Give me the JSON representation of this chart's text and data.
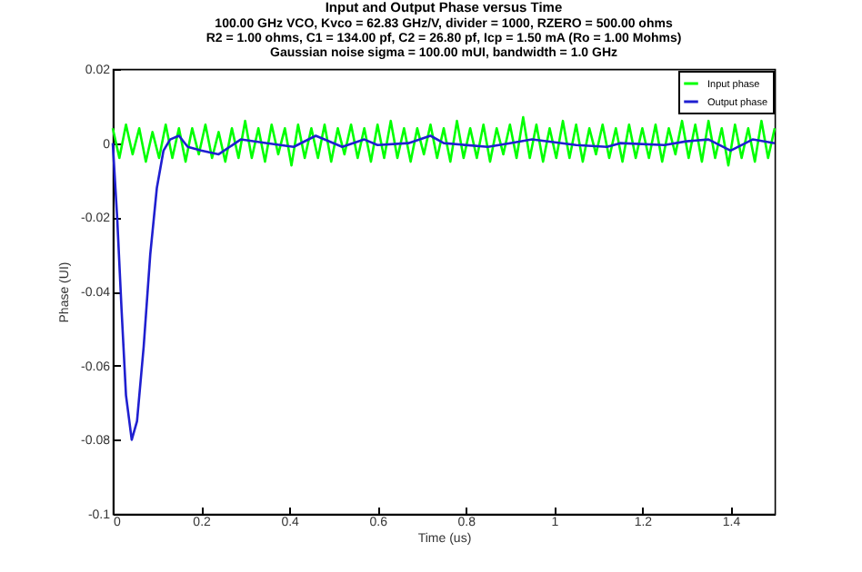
{
  "chart_data": {
    "type": "line",
    "title": "Input and Output Phase versus Time",
    "subtitle": "100.00 GHz VCO, Kvco = 62.83 GHz/V, divider = 1000, RZERO = 500.00 ohms\nR2 = 1.00 ohms, C1 = 134.00 pf, C2 = 26.80 pf, Icp = 1.50 mA (Ro = 1.00 Mohms)\nGaussian noise sigma = 100.00 mUI, bandwidth = 1.0 GHz",
    "xlabel": "Time (us)",
    "ylabel": "Phase (UI)",
    "xlim": [
      0,
      1.5
    ],
    "ylim": [
      -0.1,
      0.02
    ],
    "xticks": [
      0,
      0.2,
      0.4,
      0.6,
      0.8,
      1,
      1.2,
      1.4
    ],
    "yticks": [
      -0.1,
      -0.08,
      -0.06,
      -0.04,
      -0.02,
      0,
      0.02
    ],
    "grid": false,
    "legend": "top right",
    "marker": "none",
    "line_style": "solid",
    "series": [
      {
        "name": "Input phase",
        "color": "#00ff00",
        "x": [
          0,
          0.015,
          0.03,
          0.045,
          0.06,
          0.075,
          0.09,
          0.105,
          0.12,
          0.135,
          0.15,
          0.165,
          0.18,
          0.195,
          0.21,
          0.225,
          0.24,
          0.255,
          0.27,
          0.285,
          0.3,
          0.315,
          0.33,
          0.345,
          0.36,
          0.375,
          0.39,
          0.405,
          0.42,
          0.435,
          0.45,
          0.465,
          0.48,
          0.495,
          0.51,
          0.525,
          0.54,
          0.555,
          0.57,
          0.585,
          0.6,
          0.615,
          0.63,
          0.645,
          0.66,
          0.675,
          0.69,
          0.705,
          0.72,
          0.735,
          0.75,
          0.765,
          0.78,
          0.795,
          0.81,
          0.825,
          0.84,
          0.855,
          0.87,
          0.885,
          0.9,
          0.915,
          0.93,
          0.945,
          0.96,
          0.975,
          0.99,
          1.005,
          1.02,
          1.035,
          1.05,
          1.065,
          1.08,
          1.095,
          1.11,
          1.125,
          1.14,
          1.155,
          1.17,
          1.185,
          1.2,
          1.215,
          1.23,
          1.245,
          1.26,
          1.275,
          1.29,
          1.305,
          1.32,
          1.335,
          1.35,
          1.365,
          1.38,
          1.395,
          1.41,
          1.425,
          1.44,
          1.455,
          1.47,
          1.485,
          1.5
        ],
        "values": [
          0.004,
          -0.004,
          0.005,
          -0.003,
          0.004,
          -0.005,
          0.003,
          -0.004,
          0.005,
          -0.004,
          0.004,
          -0.005,
          0.004,
          -0.003,
          0.005,
          -0.004,
          0.003,
          -0.005,
          0.004,
          -0.004,
          0.006,
          -0.004,
          0.004,
          -0.005,
          0.005,
          -0.003,
          0.004,
          -0.006,
          0.005,
          -0.004,
          0.004,
          -0.004,
          0.005,
          -0.005,
          0.004,
          -0.003,
          0.005,
          -0.004,
          0.004,
          -0.005,
          0.005,
          -0.004,
          0.006,
          -0.004,
          0.004,
          -0.005,
          0.004,
          -0.003,
          0.005,
          -0.004,
          0.004,
          -0.005,
          0.006,
          -0.004,
          0.004,
          -0.004,
          0.005,
          -0.005,
          0.004,
          -0.003,
          0.005,
          -0.004,
          0.007,
          -0.004,
          0.005,
          -0.005,
          0.004,
          -0.004,
          0.006,
          -0.004,
          0.005,
          -0.005,
          0.004,
          -0.003,
          0.005,
          -0.004,
          0.004,
          -0.005,
          0.005,
          -0.004,
          0.004,
          -0.004,
          0.005,
          -0.005,
          0.004,
          -0.003,
          0.006,
          -0.004,
          0.005,
          -0.005,
          0.006,
          -0.004,
          0.004,
          -0.006,
          0.005,
          -0.004,
          0.004,
          -0.005,
          0.006,
          -0.004,
          0.004
        ]
      },
      {
        "name": "Output phase",
        "color": "#1f1fd0",
        "x": [
          0,
          0.01,
          0.02,
          0.03,
          0.043,
          0.055,
          0.07,
          0.085,
          0.1,
          0.115,
          0.13,
          0.15,
          0.17,
          0.2,
          0.24,
          0.29,
          0.35,
          0.41,
          0.46,
          0.52,
          0.57,
          0.6,
          0.67,
          0.72,
          0.75,
          0.85,
          0.9,
          0.95,
          1.05,
          1.12,
          1.15,
          1.25,
          1.3,
          1.35,
          1.4,
          1.45,
          1.5
        ],
        "values": [
          0,
          -0.02,
          -0.045,
          -0.068,
          -0.08,
          -0.075,
          -0.055,
          -0.03,
          -0.012,
          -0.002,
          0.001,
          0.002,
          -0.001,
          -0.002,
          -0.003,
          0.001,
          0,
          -0.001,
          0.002,
          -0.001,
          0.001,
          -0.0005,
          0,
          0.002,
          0,
          -0.001,
          0,
          0.001,
          -0.0005,
          -0.001,
          0,
          -0.0005,
          0.0005,
          0.001,
          -0.002,
          0.001,
          0
        ]
      }
    ]
  }
}
